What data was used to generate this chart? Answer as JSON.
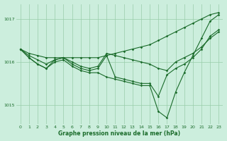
{
  "background_color": "#cceedd",
  "line_color": "#1a6b2a",
  "grid_color": "#99ccaa",
  "xlabel": "Graphe pression niveau de la mer (hPa)",
  "xlim": [
    -0.5,
    23.5
  ],
  "ylim": [
    1014.55,
    1017.35
  ],
  "yticks": [
    1015,
    1016,
    1017
  ],
  "xticks": [
    0,
    1,
    2,
    3,
    4,
    5,
    6,
    7,
    8,
    9,
    10,
    11,
    12,
    13,
    14,
    15,
    16,
    17,
    18,
    19,
    20,
    21,
    22,
    23
  ],
  "series": [
    {
      "x": [
        0,
        1,
        2,
        3,
        4,
        5,
        6,
        7,
        8,
        9,
        10,
        11,
        12,
        13,
        14,
        15,
        16,
        17,
        18,
        19,
        20,
        21,
        22,
        23
      ],
      "y": [
        1016.3,
        1016.2,
        1016.15,
        1016.1,
        1016.1,
        1016.1,
        1016.1,
        1016.1,
        1016.1,
        1016.1,
        1016.15,
        1016.2,
        1016.25,
        1016.3,
        1016.35,
        1016.4,
        1016.5,
        1016.6,
        1016.7,
        1016.8,
        1016.9,
        1017.0,
        1017.1,
        1017.15
      ],
      "marker": true
    },
    {
      "x": [
        0,
        1,
        2,
        3,
        4,
        5,
        6,
        7,
        8,
        9,
        10,
        11,
        12,
        13,
        14,
        15,
        16,
        17,
        18,
        19,
        20,
        21,
        22,
        23
      ],
      "y": [
        1016.3,
        1016.15,
        1016.05,
        1015.95,
        1016.05,
        1016.1,
        1016.0,
        1015.9,
        1015.85,
        1015.9,
        1016.2,
        1016.15,
        1016.1,
        1016.05,
        1016.0,
        1015.95,
        1015.85,
        1015.8,
        1016.0,
        1016.1,
        1016.2,
        1016.35,
        1016.55,
        1016.7
      ],
      "marker": true
    },
    {
      "x": [
        0,
        1,
        2,
        3,
        4,
        5,
        6,
        7,
        8,
        9,
        10,
        11,
        12,
        13,
        14,
        15,
        16,
        17,
        18,
        19,
        20,
        21,
        22,
        23
      ],
      "y": [
        1016.3,
        1016.1,
        1015.95,
        1015.85,
        1016.05,
        1016.1,
        1015.95,
        1015.85,
        1015.8,
        1015.85,
        1016.15,
        1015.65,
        1015.6,
        1015.55,
        1015.5,
        1015.5,
        1015.2,
        1015.7,
        1015.85,
        1015.95,
        1016.1,
        1016.3,
        1016.6,
        1016.75
      ],
      "marker": true
    },
    {
      "x": [
        0,
        1,
        2,
        3,
        4,
        5,
        6,
        7,
        8,
        9,
        10,
        11,
        12,
        13,
        14,
        15,
        16,
        17,
        18,
        19,
        20,
        21,
        22,
        23
      ],
      "y": [
        1016.3,
        1016.1,
        1015.95,
        1015.85,
        1016.0,
        1016.05,
        1015.9,
        1015.8,
        1015.75,
        1015.75,
        1015.65,
        1015.6,
        1015.55,
        1015.5,
        1015.45,
        1015.45,
        1014.85,
        1014.7,
        1015.3,
        1015.75,
        1016.15,
        1016.55,
        1016.95,
        1017.1
      ],
      "marker": true
    }
  ]
}
